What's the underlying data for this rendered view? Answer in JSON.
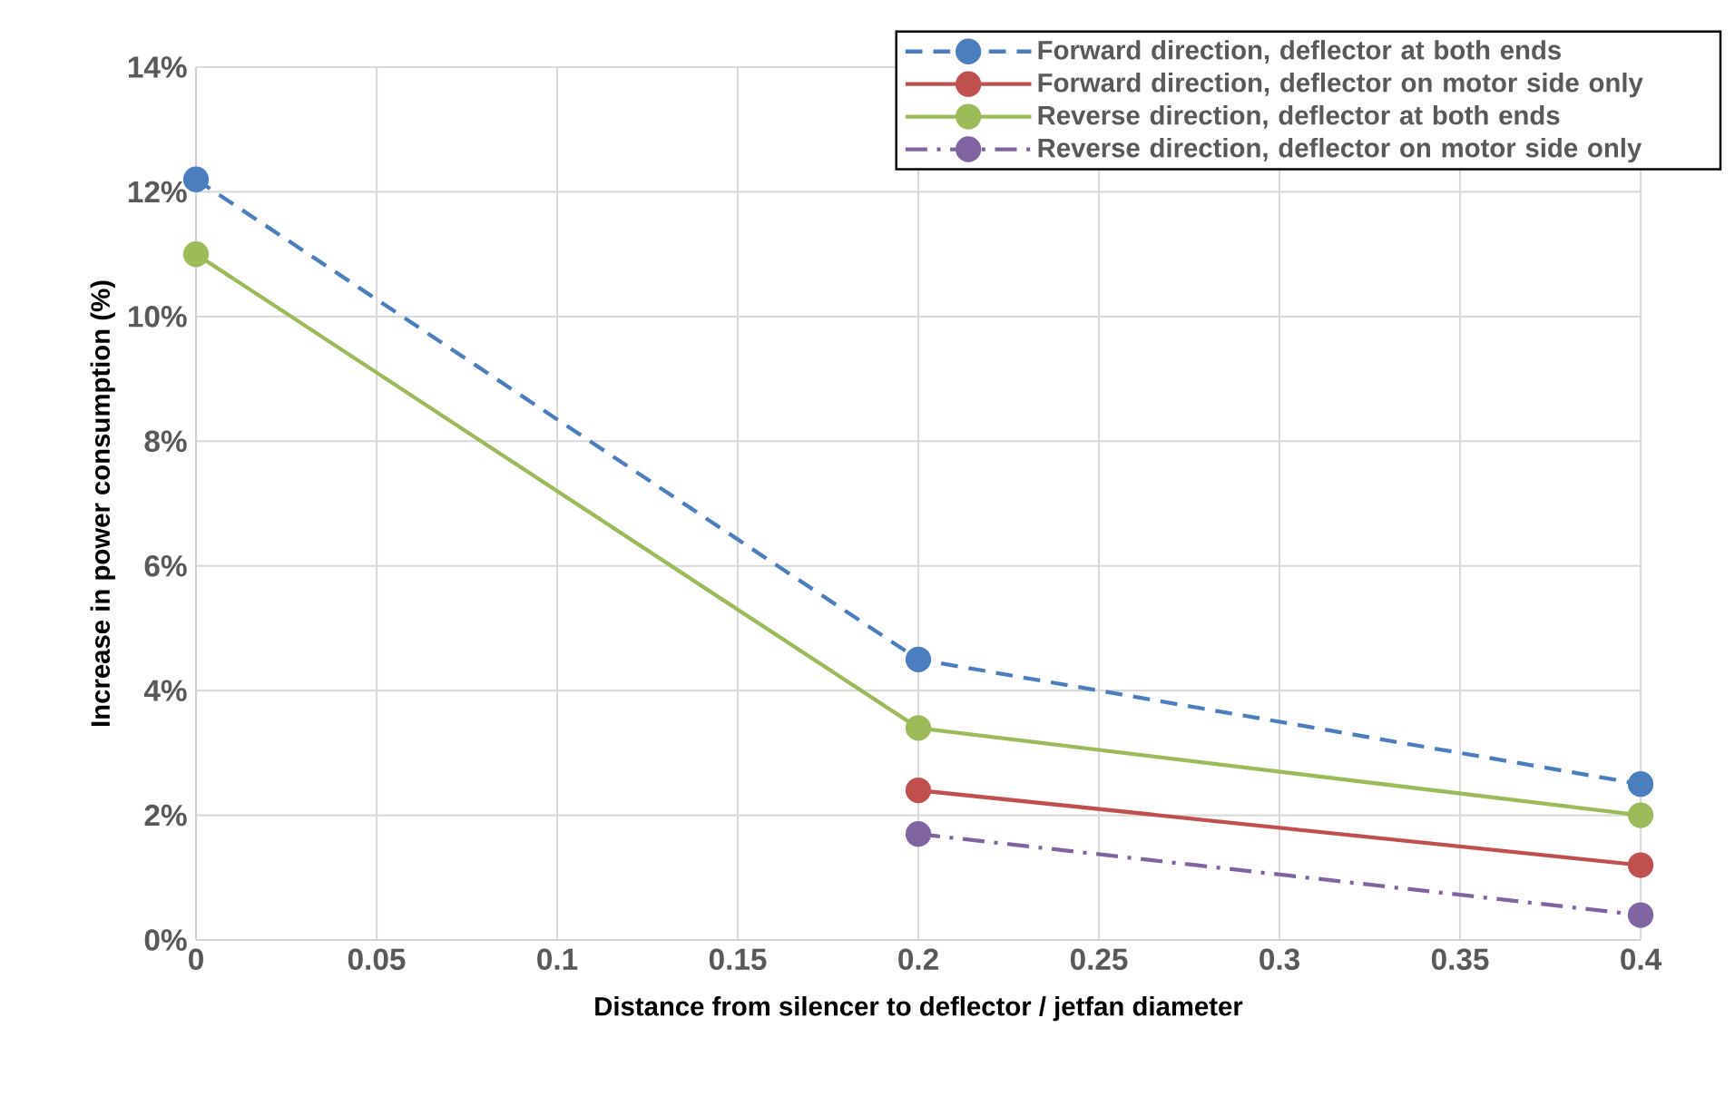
{
  "chart_data": {
    "type": "line",
    "xlabel": "Distance from silencer to deflector / jetfan diameter",
    "ylabel": "Increase in power consumption (%)",
    "x": [
      0,
      0.2,
      0.4
    ],
    "series": [
      {
        "name": "Forward direction, deflector at both ends",
        "color": "#4a7ebf",
        "line_style": "dashed",
        "values": [
          12.2,
          4.5,
          2.5
        ]
      },
      {
        "name": "Forward direction, deflector on motor side only",
        "color": "#c0504d",
        "line_style": "solid",
        "values": [
          null,
          2.4,
          1.2
        ]
      },
      {
        "name": "Reverse direction, deflector at both ends",
        "color": "#9bbb59",
        "line_style": "solid",
        "values": [
          11.0,
          3.4,
          2.0
        ]
      },
      {
        "name": "Reverse direction, deflector on motor side only",
        "color": "#8064a2",
        "line_style": "dashdot",
        "values": [
          null,
          1.7,
          0.4
        ]
      }
    ],
    "xlim": [
      0,
      0.4
    ],
    "ylim": [
      0,
      14
    ],
    "xticks": [
      0,
      0.05,
      0.1,
      0.15,
      0.2,
      0.25,
      0.3,
      0.35,
      0.4
    ],
    "yticks": [
      {
        "value": 0,
        "label": "0%"
      },
      {
        "value": 2,
        "label": "2%"
      },
      {
        "value": 4,
        "label": "4%"
      },
      {
        "value": 6,
        "label": "6%"
      },
      {
        "value": 8,
        "label": "8%"
      },
      {
        "value": 10,
        "label": "10%"
      },
      {
        "value": 12,
        "label": "12%"
      },
      {
        "value": 14,
        "label": "14%"
      }
    ],
    "grid": true,
    "legend": "top right",
    "marker": "circle"
  }
}
